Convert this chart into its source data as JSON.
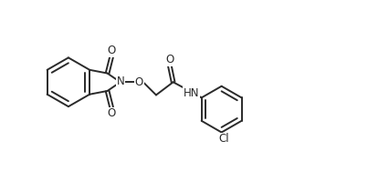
{
  "bg_color": "#ffffff",
  "line_color": "#2a2a2a",
  "text_color": "#2a2a2a",
  "line_width": 1.4,
  "font_size": 8.5,
  "figsize": [
    4.26,
    1.88
  ],
  "dpi": 100,
  "xlim": [
    0,
    11
  ],
  "ylim": [
    0,
    5
  ]
}
